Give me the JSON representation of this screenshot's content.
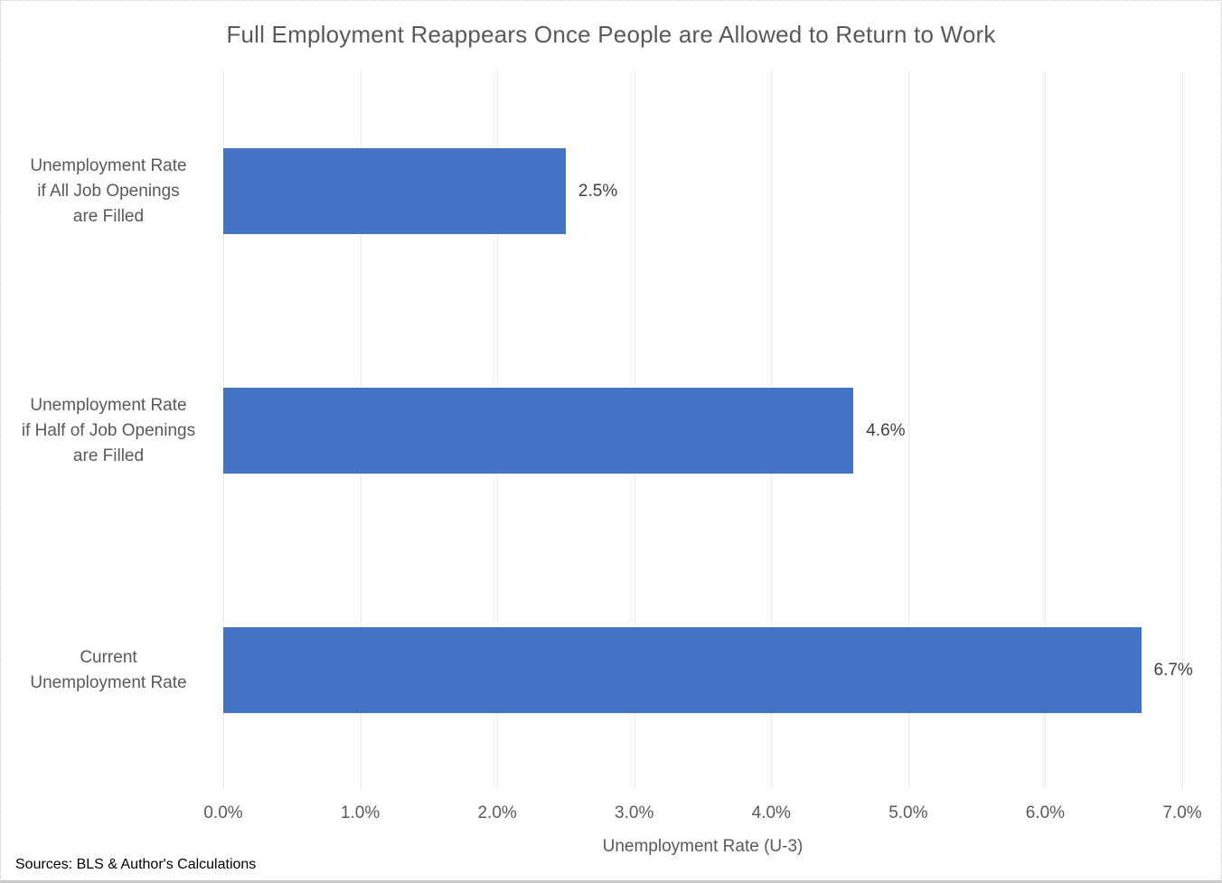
{
  "chart_data": {
    "type": "bar",
    "orientation": "horizontal",
    "title": "Full Employment Reappears Once People are Allowed to Return to Work",
    "categories": [
      "Unemployment Rate\nif All Job Openings\nare Filled",
      "Unemployment Rate\nif Half of Job Openings\nare Filled",
      "Current\nUnemployment Rate"
    ],
    "values": [
      2.5,
      4.6,
      6.7
    ],
    "data_labels": [
      "2.5%",
      "4.6%",
      "6.7%"
    ],
    "xlabel": "Unemployment Rate (U-3)",
    "ylabel": "",
    "xlim": [
      0,
      7
    ],
    "x_ticks": [
      "0.0%",
      "1.0%",
      "2.0%",
      "3.0%",
      "4.0%",
      "5.0%",
      "6.0%",
      "7.0%"
    ],
    "x_tick_values": [
      0,
      1,
      2,
      3,
      4,
      5,
      6,
      7
    ],
    "grid": "vertical-dotted",
    "legend": "none",
    "bar_color": "#4472C4"
  },
  "footer": {
    "source": "Sources: BLS & Author's Calculations"
  },
  "colors": {
    "bar": "#4472C4",
    "title_text": "#595959",
    "axis_text": "#595959",
    "label_text": "#404040",
    "gridline": "#D9D9D9",
    "border": "#C9C9C9",
    "background": "#FFFFFF",
    "source_text": "#000000"
  }
}
